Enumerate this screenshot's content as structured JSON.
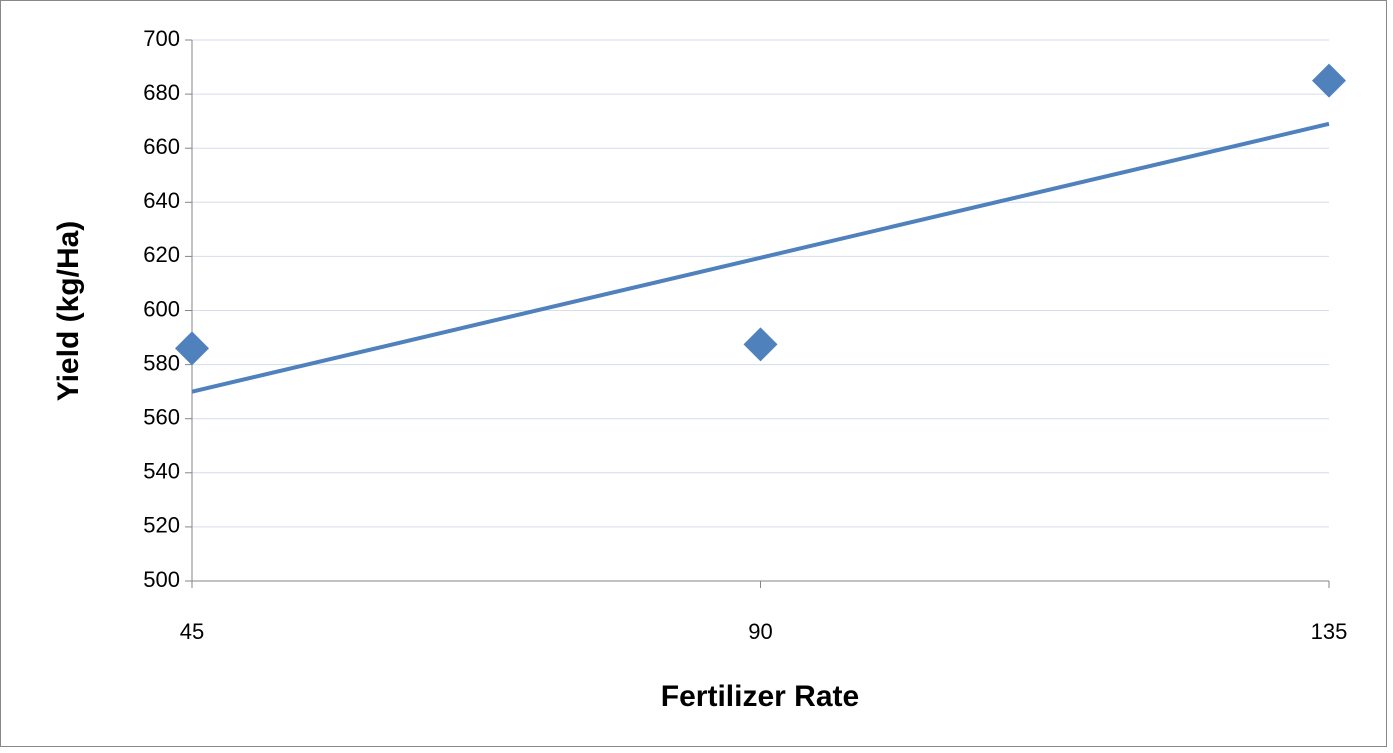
{
  "chart_data": {
    "type": "scatter",
    "x_label": "Fertilizer Rate",
    "y_label": "Yield (kg/Ha)",
    "x": [
      45,
      90,
      135
    ],
    "series": [
      {
        "color": "#4f81bd",
        "values": [
          586,
          587.5,
          685
        ]
      }
    ],
    "trendline": {
      "color": "#4f81bd",
      "x": [
        45,
        135
      ],
      "values": [
        570,
        669
      ]
    },
    "xlim": [
      45,
      135
    ],
    "xticks": [
      45,
      90,
      135
    ],
    "ylim": [
      500,
      700
    ],
    "yticks": [
      500,
      520,
      540,
      560,
      580,
      600,
      620,
      640,
      660,
      680,
      700
    ],
    "grid": true
  }
}
